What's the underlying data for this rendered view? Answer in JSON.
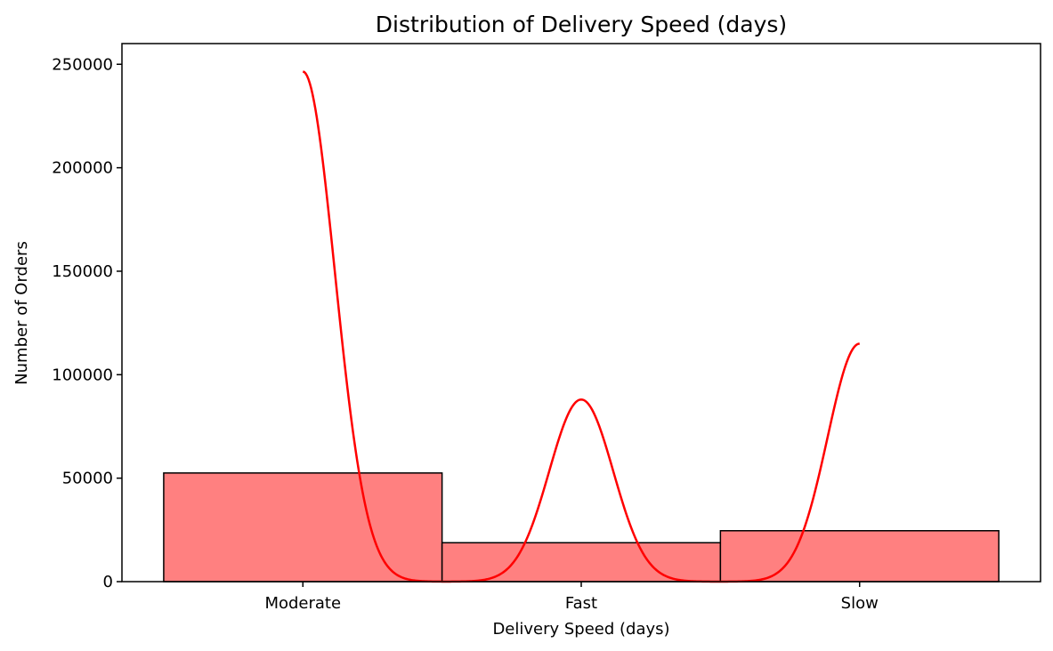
{
  "chart_data": {
    "type": "bar",
    "title": "Distribution of Delivery Speed (days)",
    "xlabel": "Delivery Speed (days)",
    "ylabel": "Number of Orders",
    "categories": [
      "Moderate",
      "Fast",
      "Slow"
    ],
    "values": [
      52500,
      18800,
      24600
    ],
    "ylim": [
      0,
      260000
    ],
    "yticks": [
      0,
      50000,
      100000,
      150000,
      200000,
      250000
    ],
    "grid": false,
    "legend": "none",
    "bar_color": "#ff8080",
    "bar_edge_color": "#000000",
    "kde": {
      "color": "#ff0000",
      "peaks": [
        {
          "category": "Moderate",
          "value": 246500
        },
        {
          "category": "Fast",
          "value": 88000
        },
        {
          "category": "Slow",
          "value": 115000
        }
      ]
    }
  }
}
